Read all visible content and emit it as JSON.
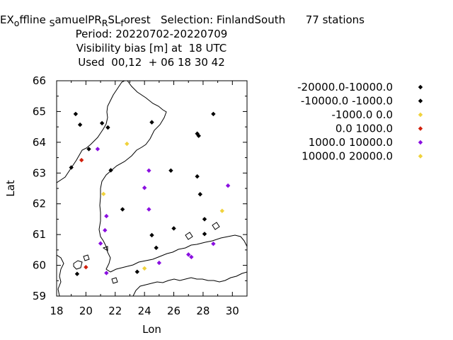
{
  "title": {
    "line1": "EX<sub>o</sub>ffline <sub>S</sub>amuelPR<sub>R</sub>SL<sub>f</sub>orest   Selection: FinlandSouth     77 stations",
    "line1_parts": [
      "EX",
      "o",
      "ffline ",
      "S",
      "amuelPR",
      "R",
      "SL",
      "f",
      "orest   Selection: FinlandSouth      77 stations"
    ],
    "line2": "Period: 20220702-20220709",
    "line3": "Visibility bias [m] at  18 UTC",
    "line4": "Used  00,12  + 06 18 30 42"
  },
  "colors": {
    "black": "#000000",
    "yellow": "#f0d23c",
    "red": "#d2200c",
    "purple": "#8a0fe0"
  },
  "chart_data": {
    "type": "scatter",
    "xlabel": "Lon",
    "ylabel": "Lat",
    "xlim": [
      18,
      31
    ],
    "ylim": [
      59,
      66
    ],
    "xticks": [
      18,
      20,
      22,
      24,
      26,
      28,
      30
    ],
    "yticks": [
      59,
      60,
      61,
      62,
      63,
      64,
      65,
      66
    ],
    "legend_position": "right",
    "legend": [
      {
        "label": "-20000.0-10000.0",
        "color": "#000000"
      },
      {
        "label": "-10000.0 -1000.0",
        "color": "#000000"
      },
      {
        "label": "-1000.0 0.0",
        "color": "#f0d23c"
      },
      {
        "label": "0.0 1000.0",
        "color": "#d2200c"
      },
      {
        "label": "1000.0 10000.0",
        "color": "#8a0fe0"
      },
      {
        "label": "10000.0 20000.0",
        "color": "#f0d23c"
      }
    ],
    "series": [
      {
        "color": "#000000",
        "points": [
          [
            19.3,
            64.92
          ],
          [
            19.6,
            64.57
          ],
          [
            21.1,
            64.62
          ],
          [
            21.5,
            64.48
          ],
          [
            24.5,
            64.65
          ],
          [
            27.6,
            64.28
          ],
          [
            27.7,
            64.21
          ],
          [
            28.7,
            64.92
          ],
          [
            20.2,
            63.78
          ],
          [
            19.0,
            63.18
          ],
          [
            21.7,
            63.09
          ],
          [
            25.8,
            63.08
          ],
          [
            27.6,
            62.89
          ],
          [
            27.8,
            62.31
          ],
          [
            28.1,
            61.5
          ],
          [
            22.5,
            61.82
          ],
          [
            26.0,
            61.2
          ],
          [
            24.5,
            60.98
          ],
          [
            28.1,
            61.02
          ],
          [
            24.8,
            60.57
          ],
          [
            19.4,
            59.72
          ],
          [
            23.5,
            59.79
          ]
        ]
      },
      {
        "color": "#f0d23c",
        "points": [
          [
            22.8,
            63.95
          ],
          [
            21.2,
            62.32
          ],
          [
            29.3,
            61.77
          ],
          [
            24.0,
            59.9
          ]
        ]
      },
      {
        "color": "#d2200c",
        "points": [
          [
            19.7,
            63.42
          ],
          [
            20.0,
            59.94
          ]
        ]
      },
      {
        "color": "#8a0fe0",
        "points": [
          [
            20.8,
            63.78
          ],
          [
            24.3,
            63.08
          ],
          [
            24.0,
            62.52
          ],
          [
            29.7,
            62.59
          ],
          [
            24.3,
            61.82
          ],
          [
            21.4,
            61.6
          ],
          [
            21.3,
            61.14
          ],
          [
            21.0,
            60.71
          ],
          [
            27.0,
            60.35
          ],
          [
            27.2,
            60.27
          ],
          [
            28.7,
            60.7
          ],
          [
            25.0,
            60.08
          ],
          [
            21.4,
            59.75
          ]
        ]
      }
    ]
  }
}
